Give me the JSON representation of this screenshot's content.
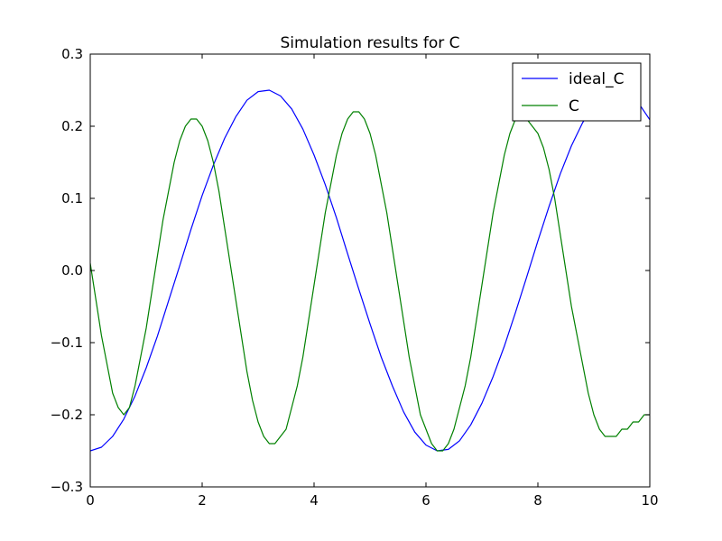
{
  "chart_data": {
    "type": "line",
    "title": "Simulation results for C",
    "xlabel": "",
    "ylabel": "",
    "xlim": [
      0,
      10
    ],
    "ylim": [
      -0.3,
      0.3
    ],
    "xticks": [
      0,
      2,
      4,
      6,
      8,
      10
    ],
    "yticks": [
      -0.3,
      -0.2,
      -0.1,
      0.0,
      0.1,
      0.2,
      0.3
    ],
    "xtick_labels": [
      "0",
      "2",
      "4",
      "6",
      "8",
      "10"
    ],
    "ytick_labels": [
      "−0.3",
      "−0.2",
      "−0.1",
      "0.0",
      "0.1",
      "0.2",
      "0.3"
    ],
    "grid": false,
    "legend": "top-right",
    "series": [
      {
        "name": "ideal_C",
        "color": "#0000ff",
        "x": [
          0.0,
          0.2,
          0.4,
          0.6,
          0.8,
          1.0,
          1.2,
          1.4,
          1.6,
          1.8,
          2.0,
          2.2,
          2.4,
          2.6,
          2.8,
          3.0,
          3.2,
          3.4,
          3.6,
          3.8,
          4.0,
          4.2,
          4.4,
          4.6,
          4.8,
          5.0,
          5.2,
          5.4,
          5.6,
          5.8,
          6.0,
          6.2,
          6.4,
          6.6,
          6.8,
          7.0,
          7.2,
          7.4,
          7.6,
          7.8,
          8.0,
          8.2,
          8.4,
          8.6,
          8.8,
          9.0,
          9.2,
          9.4,
          9.6,
          9.8,
          10.0
        ],
        "y": [
          -0.25,
          -0.245,
          -0.23,
          -0.206,
          -0.174,
          -0.135,
          -0.091,
          -0.042,
          0.007,
          0.057,
          0.104,
          0.146,
          0.183,
          0.213,
          0.236,
          0.248,
          0.25,
          0.242,
          0.224,
          0.196,
          0.16,
          0.119,
          0.073,
          0.023,
          -0.026,
          -0.074,
          -0.12,
          -0.16,
          -0.196,
          -0.224,
          -0.242,
          -0.25,
          -0.248,
          -0.236,
          -0.214,
          -0.184,
          -0.147,
          -0.105,
          -0.058,
          -0.009,
          0.041,
          0.089,
          0.134,
          0.173,
          0.205,
          0.229,
          0.245,
          0.25,
          0.246,
          0.232,
          0.209
        ]
      },
      {
        "name": "C",
        "color": "#008000",
        "x": [
          0.0,
          0.1,
          0.2,
          0.3,
          0.4,
          0.5,
          0.6,
          0.7,
          0.8,
          0.9,
          1.0,
          1.1,
          1.2,
          1.3,
          1.4,
          1.5,
          1.6,
          1.7,
          1.8,
          1.9,
          2.0,
          2.1,
          2.2,
          2.3,
          2.4,
          2.5,
          2.6,
          2.7,
          2.8,
          2.9,
          3.0,
          3.1,
          3.2,
          3.3,
          3.4,
          3.5,
          3.6,
          3.7,
          3.8,
          3.9,
          4.0,
          4.1,
          4.2,
          4.3,
          4.4,
          4.5,
          4.6,
          4.7,
          4.8,
          4.9,
          5.0,
          5.1,
          5.2,
          5.3,
          5.4,
          5.5,
          5.6,
          5.7,
          5.8,
          5.9,
          6.0,
          6.1,
          6.2,
          6.3,
          6.4,
          6.5,
          6.6,
          6.7,
          6.8,
          6.9,
          7.0,
          7.1,
          7.2,
          7.3,
          7.4,
          7.5,
          7.6,
          7.7,
          7.8,
          7.9,
          8.0,
          8.1,
          8.2,
          8.3,
          8.4,
          8.5,
          8.6,
          8.7,
          8.8,
          8.9,
          9.0,
          9.1,
          9.2,
          9.3,
          9.4,
          9.5,
          9.6,
          9.7,
          9.8,
          9.9,
          10.0
        ],
        "y": [
          0.01,
          -0.04,
          -0.09,
          -0.13,
          -0.17,
          -0.19,
          -0.2,
          -0.19,
          -0.16,
          -0.12,
          -0.08,
          -0.03,
          0.02,
          0.07,
          0.11,
          0.15,
          0.18,
          0.2,
          0.21,
          0.21,
          0.2,
          0.18,
          0.15,
          0.11,
          0.06,
          0.01,
          -0.04,
          -0.09,
          -0.14,
          -0.18,
          -0.21,
          -0.23,
          -0.24,
          -0.24,
          -0.23,
          -0.22,
          -0.19,
          -0.16,
          -0.12,
          -0.07,
          -0.02,
          0.03,
          0.08,
          0.12,
          0.16,
          0.19,
          0.21,
          0.22,
          0.22,
          0.21,
          0.19,
          0.16,
          0.12,
          0.08,
          0.03,
          -0.02,
          -0.07,
          -0.12,
          -0.16,
          -0.2,
          -0.22,
          -0.24,
          -0.25,
          -0.25,
          -0.24,
          -0.22,
          -0.19,
          -0.16,
          -0.12,
          -0.07,
          -0.02,
          0.03,
          0.08,
          0.12,
          0.16,
          0.19,
          0.21,
          0.21,
          0.21,
          0.2,
          0.19,
          0.17,
          0.14,
          0.1,
          0.05,
          0.0,
          -0.05,
          -0.09,
          -0.13,
          -0.17,
          -0.2,
          -0.22,
          -0.23,
          -0.23,
          -0.23,
          -0.22,
          -0.22,
          -0.21,
          -0.21,
          -0.2,
          -0.2
        ]
      }
    ]
  }
}
